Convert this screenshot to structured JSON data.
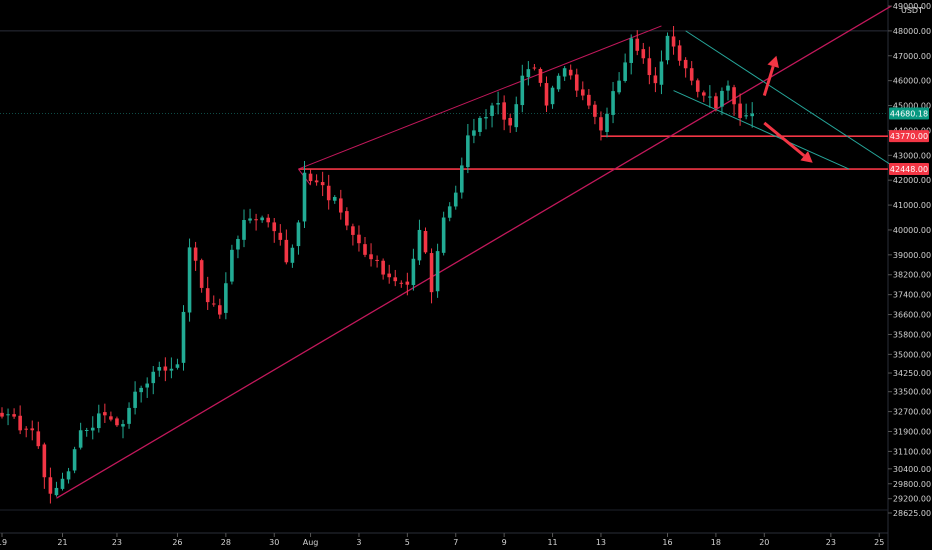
{
  "chart_data": {
    "type": "candlestick",
    "unit_label": "USDT",
    "ylim": [
      28625,
      49000
    ],
    "y_tick_labels": [
      "49000.00",
      "48000.00",
      "47000.00",
      "46000.00",
      "45000.00",
      "44000.00",
      "43000.00",
      "42000.00",
      "41000.00",
      "40000.00",
      "39000.00",
      "38200.00",
      "37400.00",
      "36600.00",
      "35800.00",
      "35000.00",
      "34250.00",
      "33500.00",
      "32700.00",
      "31900.00",
      "31100.00",
      "30400.00",
      "29800.00",
      "29200.00",
      "28625.00"
    ],
    "x_tick_labels": [
      {
        "label": "19",
        "index": 0
      },
      {
        "label": "21",
        "index": 10
      },
      {
        "label": "23",
        "index": 19
      },
      {
        "label": "26",
        "index": 29
      },
      {
        "label": "28",
        "index": 37
      },
      {
        "label": "30",
        "index": 45
      },
      {
        "label": "Aug",
        "index": 51
      },
      {
        "label": "3",
        "index": 59
      },
      {
        "label": "5",
        "index": 67
      },
      {
        "label": "7",
        "index": 75
      },
      {
        "label": "9",
        "index": 83
      },
      {
        "label": "11",
        "index": 91
      },
      {
        "label": "13",
        "index": 99
      },
      {
        "label": "16",
        "index": 110
      },
      {
        "label": "18",
        "index": 118
      },
      {
        "label": "20",
        "index": 126
      },
      {
        "label": "23",
        "index": 137
      },
      {
        "label": "25",
        "index": 145
      }
    ],
    "anchors": [
      [
        0,
        32500
      ],
      [
        5,
        31950
      ],
      [
        8,
        29400
      ],
      [
        11,
        30300
      ],
      [
        13,
        31950
      ],
      [
        17,
        32550
      ],
      [
        20,
        32200
      ],
      [
        22,
        33500
      ],
      [
        25,
        34300
      ],
      [
        29,
        34600
      ],
      [
        31,
        39300
      ],
      [
        34,
        37100
      ],
      [
        36,
        36600
      ],
      [
        38,
        39200
      ],
      [
        40,
        40400
      ],
      [
        43,
        40500
      ],
      [
        46,
        39600
      ],
      [
        47,
        38700
      ],
      [
        49,
        40300
      ],
      [
        50,
        42300
      ],
      [
        53,
        41800
      ],
      [
        56,
        40700
      ],
      [
        58,
        39800
      ],
      [
        60,
        39000
      ],
      [
        64,
        38100
      ],
      [
        67,
        37800
      ],
      [
        69,
        40000
      ],
      [
        70,
        39100
      ],
      [
        71,
        37500
      ],
      [
        73,
        40500
      ],
      [
        75,
        41500
      ],
      [
        77,
        43800
      ],
      [
        79,
        44500
      ],
      [
        82,
        45100
      ],
      [
        84,
        44200
      ],
      [
        86,
        46200
      ],
      [
        88,
        46500
      ],
      [
        90,
        45000
      ],
      [
        93,
        46500
      ],
      [
        95,
        45600
      ],
      [
        97,
        45000
      ],
      [
        99,
        44000
      ],
      [
        102,
        46000
      ],
      [
        104,
        47700
      ],
      [
        106,
        46900
      ],
      [
        108,
        45900
      ],
      [
        110,
        47800
      ],
      [
        112,
        46800
      ],
      [
        114,
        46000
      ],
      [
        116,
        45400
      ],
      [
        118,
        44900
      ],
      [
        120,
        45800
      ],
      [
        122,
        44500
      ],
      [
        124,
        44680
      ]
    ],
    "levels": [
      {
        "name": "support-upper",
        "value": 43770.0,
        "label": "43770.00",
        "color": "#f23645"
      },
      {
        "name": "support-lower",
        "value": 42448.0,
        "label": "42448.00",
        "color": "#f23645"
      }
    ],
    "last_price": {
      "value": 44680.18,
      "label": "44680.18",
      "color": "#089981"
    },
    "upper_bound": {
      "value": 48000
    },
    "trend_lines": {
      "rising_channel_top": [
        [
          49,
          42448
        ],
        [
          109,
          48200
        ]
      ],
      "rising_channel_bottom": [
        [
          9,
          29220
        ],
        [
          147,
          49000
        ]
      ],
      "falling_channel_top": [
        [
          113,
          48000
        ],
        [
          148,
          42448
        ]
      ],
      "falling_channel_bottom": [
        [
          111,
          45600
        ],
        [
          140,
          42448
        ]
      ]
    },
    "arrows": [
      {
        "name": "bullish-breakout-arrow",
        "from": [
          126,
          45400
        ],
        "to": [
          128,
          47000
        ]
      },
      {
        "name": "bearish-breakdown-arrow",
        "from": [
          126,
          44300
        ],
        "to": [
          134,
          42700
        ]
      }
    ],
    "colors": {
      "background": "#000000",
      "up": "#22ab94",
      "down": "#f23645",
      "level": "#f23645",
      "channel": "#26a69a",
      "trend": "#c2185b",
      "grid": "#1e222d",
      "axis_text": "#d2d2d2",
      "last_price": "#089981"
    }
  }
}
